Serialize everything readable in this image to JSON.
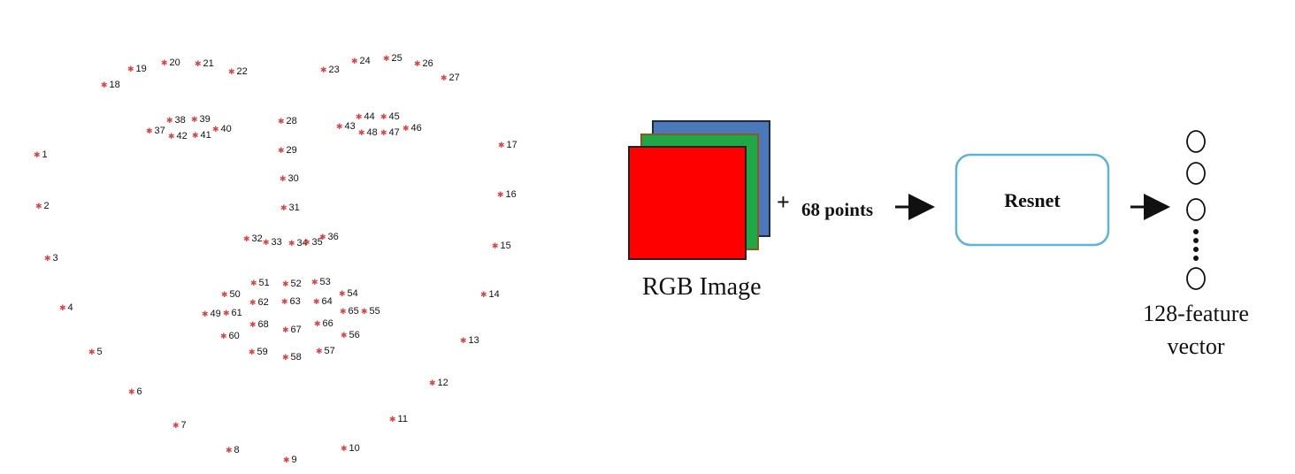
{
  "landmarks": [
    {
      "n": "1"
    },
    {
      "n": "2"
    },
    {
      "n": "3"
    },
    {
      "n": "4"
    },
    {
      "n": "5"
    },
    {
      "n": "6"
    },
    {
      "n": "7"
    },
    {
      "n": "8"
    },
    {
      "n": "9"
    },
    {
      "n": "10"
    },
    {
      "n": "11"
    },
    {
      "n": "12"
    },
    {
      "n": "13"
    },
    {
      "n": "14"
    },
    {
      "n": "15"
    },
    {
      "n": "16"
    },
    {
      "n": "17"
    },
    {
      "n": "18"
    },
    {
      "n": "19"
    },
    {
      "n": "20"
    },
    {
      "n": "21"
    },
    {
      "n": "22"
    },
    {
      "n": "23"
    },
    {
      "n": "24"
    },
    {
      "n": "25"
    },
    {
      "n": "26"
    },
    {
      "n": "27"
    },
    {
      "n": "28"
    },
    {
      "n": "29"
    },
    {
      "n": "30"
    },
    {
      "n": "31"
    },
    {
      "n": "32"
    },
    {
      "n": "33"
    },
    {
      "n": "34"
    },
    {
      "n": "35"
    },
    {
      "n": "36"
    },
    {
      "n": "37"
    },
    {
      "n": "38"
    },
    {
      "n": "39"
    },
    {
      "n": "40"
    },
    {
      "n": "41"
    },
    {
      "n": "42"
    },
    {
      "n": "43"
    },
    {
      "n": "44"
    },
    {
      "n": "45"
    },
    {
      "n": "46"
    },
    {
      "n": "47"
    },
    {
      "n": "48"
    },
    {
      "n": "49"
    },
    {
      "n": "50"
    },
    {
      "n": "51"
    },
    {
      "n": "52"
    },
    {
      "n": "53"
    },
    {
      "n": "54"
    },
    {
      "n": "55"
    },
    {
      "n": "56"
    },
    {
      "n": "57"
    },
    {
      "n": "58"
    },
    {
      "n": "59"
    },
    {
      "n": "60"
    },
    {
      "n": "61"
    },
    {
      "n": "62"
    },
    {
      "n": "63"
    },
    {
      "n": "64"
    },
    {
      "n": "65"
    },
    {
      "n": "66"
    },
    {
      "n": "67"
    },
    {
      "n": "68"
    }
  ],
  "pipeline": {
    "plus": "+",
    "points_label": "68 points",
    "image_caption": "RGB Image",
    "model_label": "Resnet",
    "vector_caption_line1": "128-feature",
    "vector_caption_line2": "vector"
  },
  "colors": {
    "landmark_dot": "#d64545",
    "red_channel": "#ff0000",
    "green_channel": "#1fa847",
    "blue_channel": "#4a78b8",
    "model_box_border": "#5fb3d6"
  }
}
